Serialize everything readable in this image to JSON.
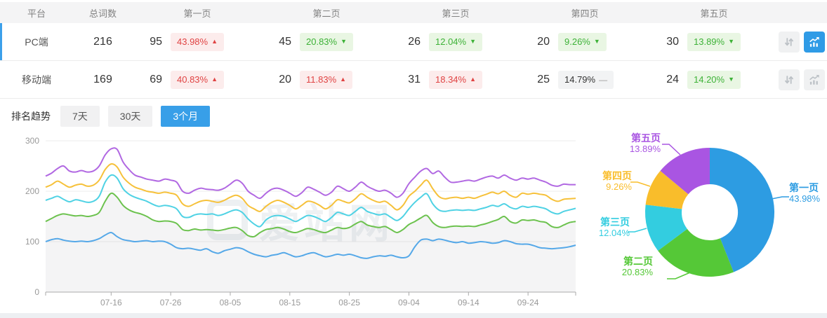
{
  "table": {
    "columns": [
      "平台",
      "总词数",
      "第一页",
      "第二页",
      "第三页",
      "第四页",
      "第五页"
    ],
    "rows": [
      {
        "platform": "PC端",
        "total": "216",
        "active": true,
        "chart_active": true,
        "pages": [
          {
            "count": "95",
            "pct": "43.98%",
            "dir": "up",
            "tone": "red"
          },
          {
            "count": "45",
            "pct": "20.83%",
            "dir": "down",
            "tone": "green"
          },
          {
            "count": "26",
            "pct": "12.04%",
            "dir": "down",
            "tone": "green"
          },
          {
            "count": "20",
            "pct": "9.26%",
            "dir": "down",
            "tone": "green"
          },
          {
            "count": "30",
            "pct": "13.89%",
            "dir": "down",
            "tone": "green"
          }
        ]
      },
      {
        "platform": "移动端",
        "total": "169",
        "active": false,
        "chart_active": false,
        "pages": [
          {
            "count": "69",
            "pct": "40.83%",
            "dir": "up",
            "tone": "red"
          },
          {
            "count": "20",
            "pct": "11.83%",
            "dir": "up",
            "tone": "red"
          },
          {
            "count": "31",
            "pct": "18.34%",
            "dir": "up",
            "tone": "red"
          },
          {
            "count": "25",
            "pct": "14.79%",
            "dir": "flat",
            "tone": "gray"
          },
          {
            "count": "24",
            "pct": "14.20%",
            "dir": "down",
            "tone": "green"
          }
        ]
      }
    ]
  },
  "trend": {
    "label": "排名趋势",
    "tabs": [
      {
        "label": "7天",
        "active": false
      },
      {
        "label": "30天",
        "active": false
      },
      {
        "label": "3个月",
        "active": true
      }
    ]
  },
  "watermark": "爱站网",
  "colors": {
    "accent_blue": "#389fe8",
    "badge_red_text": "#e04343",
    "badge_green_text": "#3db237",
    "area_fill": "rgba(110,120,130,0.08)"
  },
  "chart_data": [
    {
      "type": "line",
      "title": "排名趋势 (3个月)",
      "x_ticks": [
        "07-16",
        "07-26",
        "08-05",
        "08-15",
        "08-25",
        "09-04",
        "09-14",
        "09-24"
      ],
      "x_tick_indices": [
        11,
        21,
        31,
        41,
        51,
        61,
        71,
        81
      ],
      "y_ticks": [
        0,
        100,
        200,
        300
      ],
      "ylim": [
        0,
        300
      ],
      "stacked_cumulative": true,
      "series": [
        {
          "name": "第一页",
          "color": "#55a8e8",
          "values": [
            100,
            104,
            106,
            103,
            101,
            100,
            101,
            100,
            102,
            106,
            113,
            118,
            110,
            104,
            102,
            100,
            101,
            102,
            100,
            101,
            100,
            95,
            88,
            86,
            87,
            85,
            83,
            86,
            80,
            77,
            82,
            85,
            88,
            86,
            80,
            75,
            72,
            70,
            73,
            75,
            78,
            74,
            70,
            72,
            76,
            78,
            74,
            70,
            72,
            75,
            73,
            75,
            72,
            68,
            67,
            70,
            72,
            71,
            73,
            70,
            68,
            72,
            90,
            103,
            105,
            102,
            105,
            103,
            100,
            98,
            100,
            97,
            98,
            100,
            99,
            97,
            98,
            102,
            100,
            96,
            95,
            95,
            92,
            88,
            87,
            86,
            87,
            88,
            90,
            93
          ]
        },
        {
          "name": "第二页",
          "color": "#6cc24e",
          "area": true,
          "values": [
            140,
            146,
            152,
            155,
            153,
            151,
            152,
            150,
            152,
            158,
            180,
            196,
            188,
            172,
            163,
            158,
            155,
            150,
            143,
            140,
            141,
            140,
            136,
            124,
            122,
            125,
            123,
            124,
            123,
            122,
            124,
            127,
            128,
            122,
            112,
            110,
            118,
            124,
            126,
            128,
            125,
            120,
            118,
            122,
            126,
            124,
            120,
            118,
            123,
            128,
            126,
            128,
            135,
            140,
            133,
            130,
            128,
            130,
            124,
            118,
            124,
            134,
            140,
            147,
            152,
            138,
            130,
            128,
            130,
            131,
            130,
            131,
            130,
            133,
            136,
            140,
            144,
            150,
            140,
            137,
            143,
            142,
            143,
            140,
            138,
            130,
            128,
            133,
            138,
            140
          ]
        },
        {
          "name": "第三页",
          "color": "#4fd2e4",
          "values": [
            182,
            186,
            190,
            184,
            179,
            183,
            181,
            178,
            180,
            190,
            218,
            232,
            226,
            205,
            194,
            188,
            184,
            180,
            174,
            170,
            172,
            170,
            165,
            150,
            148,
            153,
            155,
            154,
            155,
            152,
            155,
            160,
            163,
            158,
            145,
            135,
            130,
            143,
            150,
            152,
            150,
            145,
            140,
            146,
            152,
            150,
            145,
            140,
            148,
            158,
            155,
            152,
            160,
            168,
            160,
            156,
            153,
            155,
            148,
            142,
            150,
            165,
            178,
            188,
            195,
            175,
            163,
            160,
            162,
            163,
            162,
            163,
            162,
            165,
            168,
            172,
            170,
            175,
            168,
            165,
            170,
            168,
            170,
            168,
            165,
            158,
            155,
            160,
            163,
            166
          ]
        },
        {
          "name": "第四页",
          "color": "#f6c13a",
          "values": [
            208,
            213,
            220,
            214,
            208,
            212,
            214,
            210,
            212,
            222,
            243,
            254,
            248,
            228,
            216,
            208,
            204,
            200,
            198,
            196,
            198,
            196,
            192,
            175,
            170,
            175,
            180,
            182,
            180,
            178,
            182,
            188,
            192,
            186,
            172,
            165,
            160,
            170,
            178,
            182,
            178,
            172,
            165,
            172,
            180,
            178,
            172,
            165,
            172,
            183,
            180,
            177,
            185,
            195,
            188,
            182,
            178,
            180,
            172,
            163,
            172,
            190,
            200,
            212,
            222,
            205,
            190,
            185,
            187,
            188,
            186,
            188,
            186,
            190,
            194,
            198,
            195,
            200,
            192,
            188,
            196,
            194,
            196,
            194,
            192,
            184,
            180,
            184,
            185,
            186
          ]
        },
        {
          "name": "第五页",
          "color": "#b168e2",
          "values": [
            230,
            236,
            245,
            250,
            240,
            238,
            241,
            238,
            240,
            250,
            272,
            284,
            283,
            258,
            243,
            232,
            228,
            224,
            222,
            220,
            224,
            222,
            218,
            200,
            196,
            202,
            206,
            204,
            203,
            202,
            206,
            214,
            222,
            216,
            200,
            192,
            186,
            196,
            204,
            206,
            202,
            196,
            190,
            197,
            208,
            204,
            198,
            192,
            198,
            210,
            205,
            200,
            208,
            218,
            210,
            204,
            200,
            202,
            196,
            188,
            196,
            215,
            228,
            240,
            245,
            235,
            240,
            228,
            218,
            218,
            220,
            222,
            220,
            224,
            228,
            230,
            226,
            232,
            226,
            222,
            226,
            224,
            226,
            222,
            218,
            212,
            210,
            214,
            213,
            213
          ]
        }
      ]
    },
    {
      "type": "donut",
      "title": "页面分布",
      "slices": [
        {
          "label": "第一页",
          "pct": "43.98%",
          "value": 43.98,
          "color": "#2d9ce2"
        },
        {
          "label": "第二页",
          "pct": "20.83%",
          "value": 20.83,
          "color": "#55c837"
        },
        {
          "label": "第三页",
          "pct": "12.04%",
          "value": 12.04,
          "color": "#33cde0"
        },
        {
          "label": "第四页",
          "pct": "9.26%",
          "value": 9.26,
          "color": "#f9bd2b"
        },
        {
          "label": "第五页",
          "pct": "13.89%",
          "value": 13.89,
          "color": "#a955e2"
        }
      ]
    }
  ]
}
